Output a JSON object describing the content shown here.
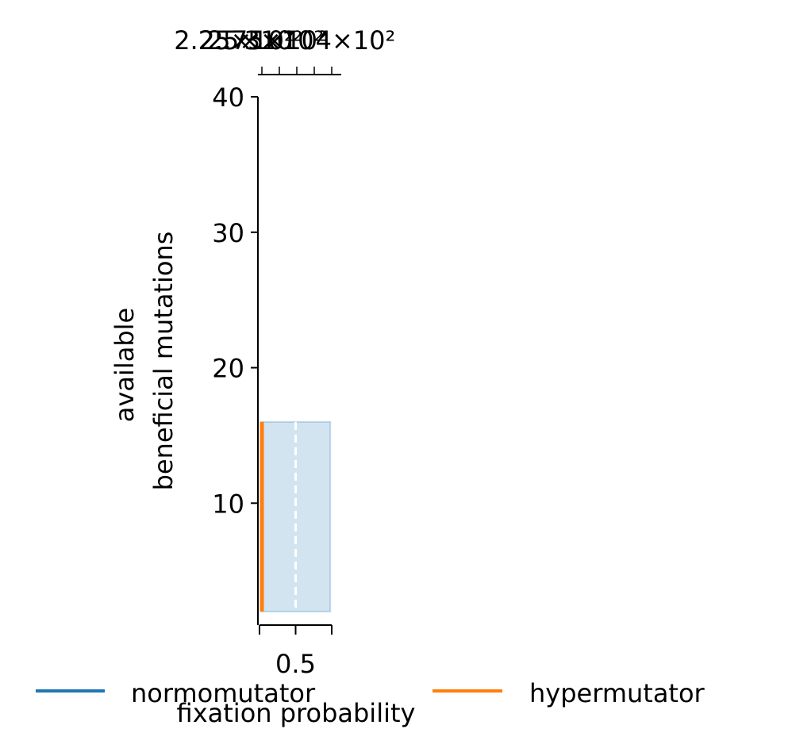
{
  "chart_data": {
    "type": "area",
    "xlabel": "fixation probability",
    "ylabel_lines": [
      "available",
      "beneficial mutations"
    ],
    "ylim": [
      1,
      40
    ],
    "y_ticks": [
      10,
      20,
      30,
      40
    ],
    "x_ticks": [
      0.5
    ],
    "top_axis_labels": [
      "2.25×10²",
      "2.5×10²",
      "2.75×10²",
      "3×10²",
      "4×10²"
    ],
    "band": {
      "x_min": 0.02,
      "x_max": 0.98,
      "y_min": 2,
      "y_max": 16
    },
    "median_x": 0.5,
    "series": [
      {
        "name": "normomutator",
        "color": "#1f77b4"
      },
      {
        "name": "hypermutator",
        "color": "#ff7f0e",
        "x": 0,
        "y_range": [
          2,
          16
        ]
      }
    ],
    "legend_position": "bottom"
  }
}
